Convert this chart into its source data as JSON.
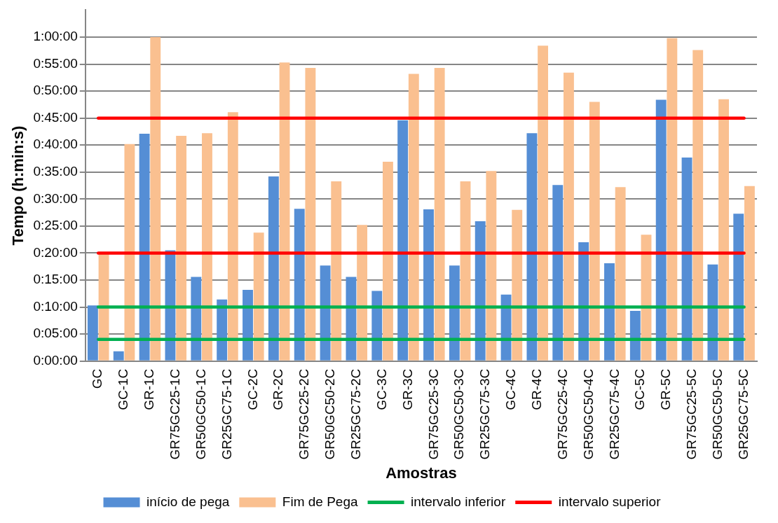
{
  "chart_data": {
    "type": "bar",
    "xlabel": "Amostras",
    "ylabel": "Tempo (h:min:s)",
    "categories": [
      "GC",
      "GC-1C",
      "GR-1C",
      "GR75GC25-1C",
      "GR50GC50-1C",
      "GR25GC75-1C",
      "GC-2C",
      "GR-2C",
      "GR75GC25-2C",
      "GR50GC50-2C",
      "GR25GC75-2C",
      "GC-3C",
      "GR-3C",
      "GR75GC25-3C",
      "GR50GC50-3C",
      "GR25GC75-3C",
      "GC-4C",
      "GR-4C",
      "GR75GC25-4C",
      "GR50GC50-4C",
      "GR25GC75-4C",
      "GC-5C",
      "GR-5C",
      "GR75GC25-5C",
      "GR50GC50-5C",
      "GR25GC75-5C"
    ],
    "series": [
      {
        "name": "início de pega",
        "color": "#558ed5",
        "values": [
          10.3,
          1.8,
          42.1,
          20.5,
          15.6,
          11.4,
          13.2,
          34.2,
          28.2,
          17.7,
          15.6,
          13.0,
          44.6,
          28.1,
          17.7,
          25.9,
          12.3,
          42.2,
          32.6,
          22.0,
          18.1,
          9.3,
          48.4,
          37.7,
          17.9,
          27.3
        ]
      },
      {
        "name": "Fim de Pega",
        "color": "#fac090",
        "values": [
          19.9,
          40.2,
          60,
          41.7,
          42.2,
          46.1,
          23.8,
          55.3,
          54.3,
          33.3,
          25.2,
          36.9,
          53.2,
          54.3,
          33.3,
          35.2,
          28.0,
          58.4,
          53.4,
          48.0,
          32.2,
          23.4,
          59.8,
          57.6,
          48.5,
          32.4
        ]
      },
      {
        "name": "intervalo inferior",
        "type": "line",
        "color": "#00b050",
        "values": [
          4,
          4,
          4,
          4,
          4,
          4,
          4,
          4,
          4,
          4,
          4,
          4,
          4,
          4,
          4,
          4,
          4,
          4,
          4,
          4,
          4,
          4,
          4,
          4,
          4,
          4
        ]
      },
      {
        "type": "line",
        "color": "#00b050",
        "values": [
          10,
          10,
          10,
          10,
          10,
          10,
          10,
          10,
          10,
          10,
          10,
          10,
          10,
          10,
          10,
          10,
          10,
          10,
          10,
          10,
          10,
          10,
          10,
          10,
          10,
          10
        ]
      },
      {
        "name": "intervalo superior",
        "type": "line",
        "color": "#ff0000",
        "values": [
          45,
          45,
          45,
          45,
          45,
          45,
          45,
          45,
          45,
          45,
          45,
          45,
          45,
          45,
          45,
          45,
          45,
          45,
          45,
          45,
          45,
          45,
          45,
          45,
          45,
          45
        ]
      },
      {
        "type": "line",
        "color": "#ff0000",
        "values": [
          20,
          20,
          20,
          20,
          20,
          20,
          20,
          20,
          20,
          20,
          20,
          20,
          20,
          20,
          20,
          20,
          20,
          20,
          20,
          20,
          20,
          20,
          20,
          20,
          20,
          20
        ]
      }
    ],
    "ylim": [
      0,
      65
    ],
    "yticks": [
      {
        "value": 0,
        "label": "0:00:00"
      },
      {
        "value": 5,
        "label": "0:05:00"
      },
      {
        "value": 10,
        "label": "0:10:00"
      },
      {
        "value": 15,
        "label": "0:15:00"
      },
      {
        "value": 20,
        "label": "0:20:00"
      },
      {
        "value": 25,
        "label": "0:25:00"
      },
      {
        "value": 30,
        "label": "0:30:00"
      },
      {
        "value": 35,
        "label": "0:35:00"
      },
      {
        "value": 40,
        "label": "0:40:00"
      },
      {
        "value": 45,
        "label": "0:45:00"
      },
      {
        "value": 50,
        "label": "0:50:00"
      },
      {
        "value": 55,
        "label": "0:55:00"
      },
      {
        "value": 60,
        "label": "1:00:00"
      }
    ],
    "grid": "y",
    "legend": "bottom",
    "marker": "none"
  }
}
